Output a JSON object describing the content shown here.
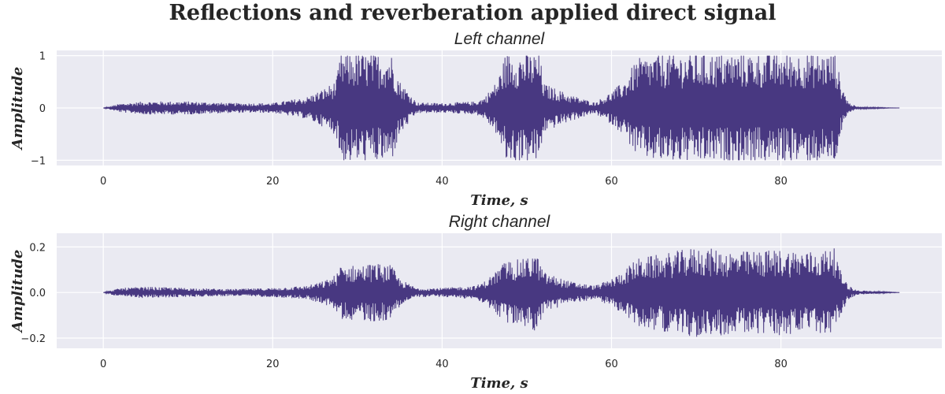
{
  "figure": {
    "title": "Reflections and reverberation applied direct signal",
    "background": "#ffffff",
    "axes_facecolor": "#eaeaf2",
    "grid_color": "#ffffff",
    "line_color": "#483881"
  },
  "chart_data": [
    {
      "type": "line",
      "title": "Left channel",
      "xlabel": "Time, s",
      "ylabel": "Amplitude",
      "xlim": [
        -5.5,
        99
      ],
      "ylim": [
        -1.1,
        1.1
      ],
      "xticks": [
        0,
        20,
        40,
        60,
        80
      ],
      "xtick_labels": [
        "0",
        "20",
        "40",
        "60",
        "80"
      ],
      "yticks": [
        -1,
        0,
        1
      ],
      "ytick_labels": [
        "−1",
        "0",
        "1"
      ],
      "grid": true,
      "series": [
        {
          "duration_s": 94,
          "envelope": {
            "t": [
              0,
              2,
              5,
              10,
              15,
              20,
              24,
              26,
              27.5,
              28,
              30,
              32,
              34,
              35,
              37,
              40,
              44,
              45,
              46.5,
              47.5,
              50,
              51.5,
              52,
              55,
              58,
              60,
              61.5,
              63,
              66,
              70,
              75,
              80,
              85,
              86.5,
              87,
              88,
              89,
              94
            ],
            "amplitude": [
              0.0,
              0.08,
              0.12,
              0.12,
              0.09,
              0.09,
              0.2,
              0.35,
              0.5,
              1.0,
              1.0,
              1.0,
              1.0,
              0.5,
              0.1,
              0.09,
              0.12,
              0.2,
              0.5,
              1.0,
              1.0,
              1.0,
              0.45,
              0.25,
              0.1,
              0.3,
              0.5,
              0.9,
              1.0,
              1.0,
              1.0,
              1.0,
              1.0,
              1.0,
              0.5,
              0.1,
              0.02,
              0.0
            ]
          }
        }
      ]
    },
    {
      "type": "line",
      "title": "Right channel",
      "xlabel": "Time, s",
      "ylabel": "Amplitude",
      "xlim": [
        -5.5,
        99
      ],
      "ylim": [
        -0.245,
        0.26
      ],
      "xticks": [
        0,
        20,
        40,
        60,
        80
      ],
      "xtick_labels": [
        "0",
        "20",
        "40",
        "60",
        "80"
      ],
      "yticks": [
        -0.2,
        0.0,
        0.2
      ],
      "ytick_labels": [
        "−0.2",
        "0.0",
        "0.2"
      ],
      "grid": true,
      "series": [
        {
          "duration_s": 94,
          "envelope": {
            "t": [
              0,
              2,
              5,
              10,
              15,
              20,
              24,
              26,
              27.5,
              28,
              30,
              32,
              34,
              35,
              37,
              40,
              44,
              45,
              46.5,
              47.5,
              50,
              51,
              52,
              55,
              58,
              60,
              61.5,
              63,
              66,
              70,
              75,
              80,
              85,
              86,
              87,
              88,
              89,
              94
            ],
            "amplitude": [
              0.0,
              0.02,
              0.025,
              0.02,
              0.015,
              0.02,
              0.03,
              0.05,
              0.08,
              0.12,
              0.12,
              0.13,
              0.12,
              0.06,
              0.02,
              0.02,
              0.03,
              0.05,
              0.1,
              0.14,
              0.15,
              0.18,
              0.09,
              0.05,
              0.03,
              0.06,
              0.1,
              0.15,
              0.17,
              0.2,
              0.18,
              0.19,
              0.18,
              0.23,
              0.1,
              0.03,
              0.01,
              0.0
            ]
          }
        }
      ]
    }
  ]
}
